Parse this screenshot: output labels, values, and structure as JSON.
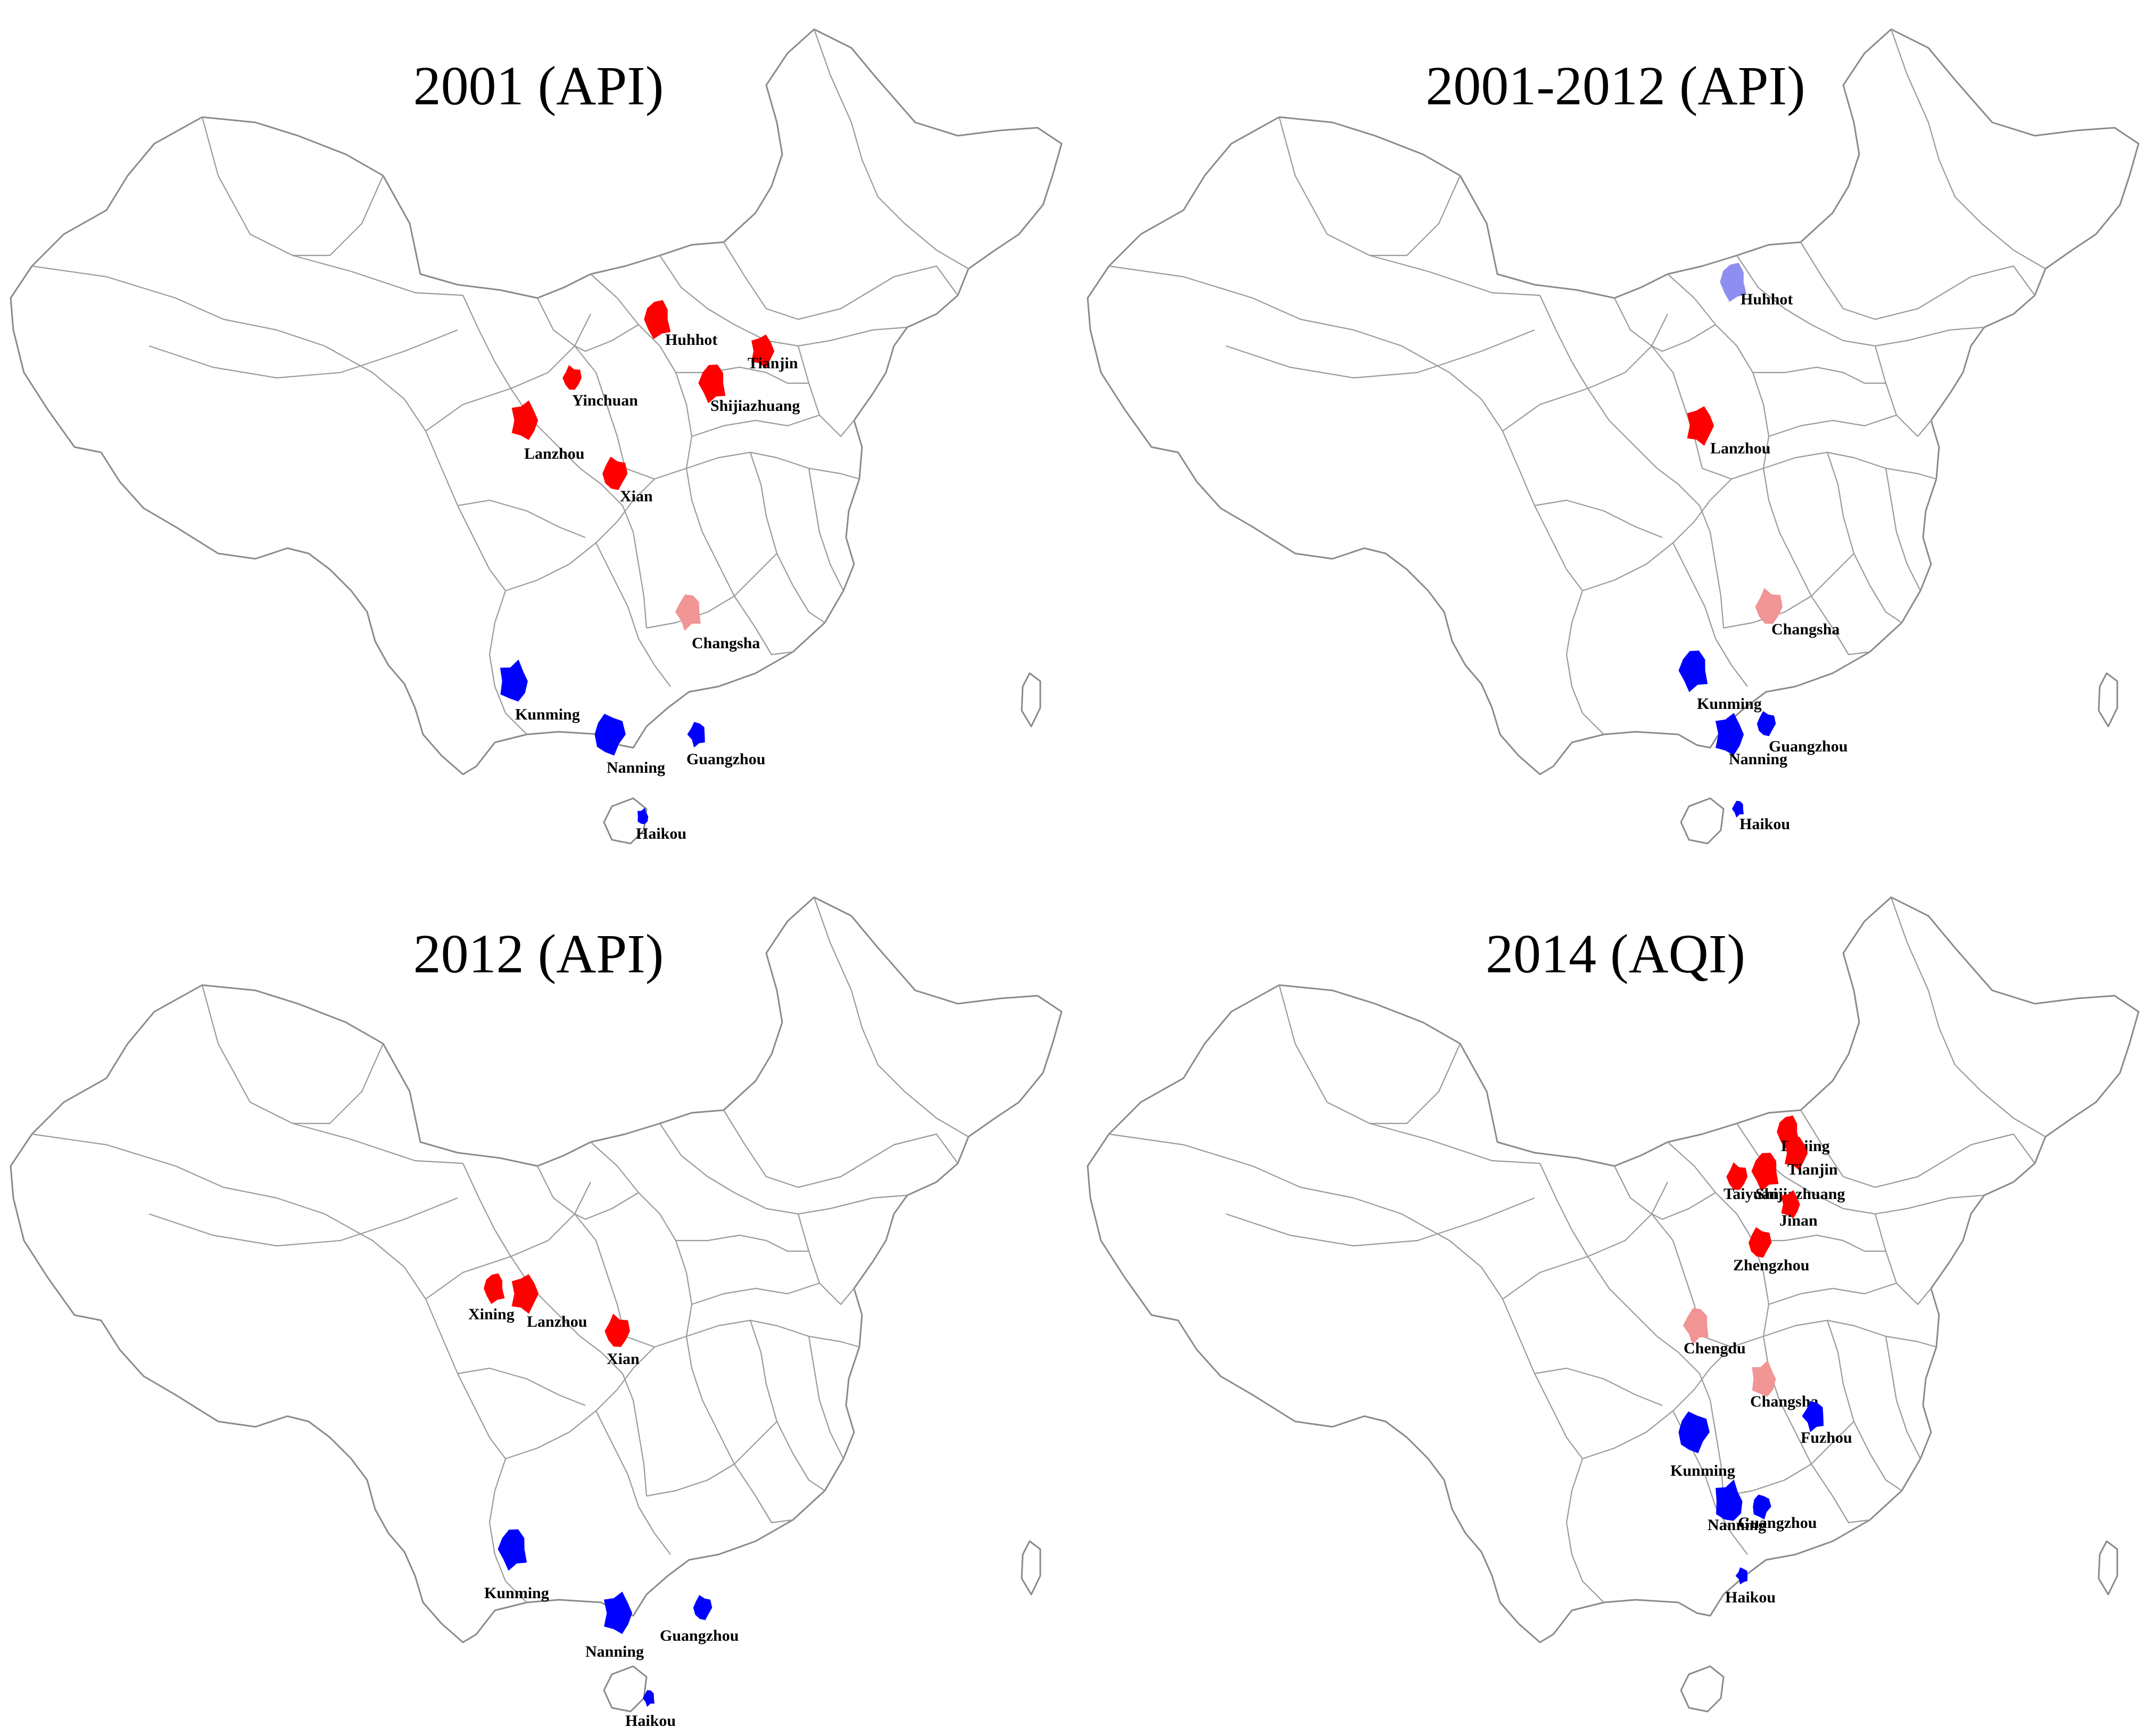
{
  "colors": {
    "high_pollution": "#ff0000",
    "moderate_pollution": "#f19595",
    "low_pollution": "#0000ff",
    "change_light": "#8e8ef0",
    "outline": "#8a8a8a"
  },
  "maps": [
    {
      "title": "2001 (API)",
      "cities": [
        {
          "name": "Huhhot",
          "color": "#ff0000"
        },
        {
          "name": "Tianjin",
          "color": "#ff0000"
        },
        {
          "name": "Yinchuan",
          "color": "#ff0000"
        },
        {
          "name": "Shijiazhuang",
          "color": "#ff0000"
        },
        {
          "name": "Lanzhou",
          "color": "#ff0000"
        },
        {
          "name": "Xian",
          "color": "#ff0000"
        },
        {
          "name": "Changsha",
          "color": "#f19595"
        },
        {
          "name": "Kunming",
          "color": "#0000ff"
        },
        {
          "name": "Nanning",
          "color": "#0000ff"
        },
        {
          "name": "Guangzhou",
          "color": "#0000ff"
        },
        {
          "name": "Haikou",
          "color": "#0000ff"
        }
      ]
    },
    {
      "title": "2001-2012 (API)",
      "cities": [
        {
          "name": "Huhhot",
          "color": "#8e8ef0"
        },
        {
          "name": "Lanzhou",
          "color": "#ff0000"
        },
        {
          "name": "Changsha",
          "color": "#f19595"
        },
        {
          "name": "Kunming",
          "color": "#0000ff"
        },
        {
          "name": "Nanning",
          "color": "#0000ff"
        },
        {
          "name": "Guangzhou",
          "color": "#0000ff"
        },
        {
          "name": "Haikou",
          "color": "#0000ff"
        }
      ]
    },
    {
      "title": "2012 (API)",
      "cities": [
        {
          "name": "Xining",
          "color": "#ff0000"
        },
        {
          "name": "Lanzhou",
          "color": "#ff0000"
        },
        {
          "name": "Xian",
          "color": "#ff0000"
        },
        {
          "name": "Kunming",
          "color": "#0000ff"
        },
        {
          "name": "Nanning",
          "color": "#0000ff"
        },
        {
          "name": "Guangzhou",
          "color": "#0000ff"
        },
        {
          "name": "Haikou",
          "color": "#0000ff"
        }
      ]
    },
    {
      "title": "2014 (AQI)",
      "cities": [
        {
          "name": "Beijing",
          "color": "#ff0000"
        },
        {
          "name": "Tianjin",
          "color": "#ff0000"
        },
        {
          "name": "Taiyuan",
          "color": "#ff0000"
        },
        {
          "name": "Shijiazhuang",
          "color": "#ff0000"
        },
        {
          "name": "Jinan",
          "color": "#ff0000"
        },
        {
          "name": "Zhengzhou",
          "color": "#ff0000"
        },
        {
          "name": "Chengdu",
          "color": "#f19595"
        },
        {
          "name": "Changsha",
          "color": "#f19595"
        },
        {
          "name": "Kunming",
          "color": "#0000ff"
        },
        {
          "name": "Fuzhou",
          "color": "#0000ff"
        },
        {
          "name": "Nanning",
          "color": "#0000ff"
        },
        {
          "name": "Guangzhou",
          "color": "#0000ff"
        },
        {
          "name": "Haikou",
          "color": "#0000ff"
        }
      ]
    }
  ]
}
